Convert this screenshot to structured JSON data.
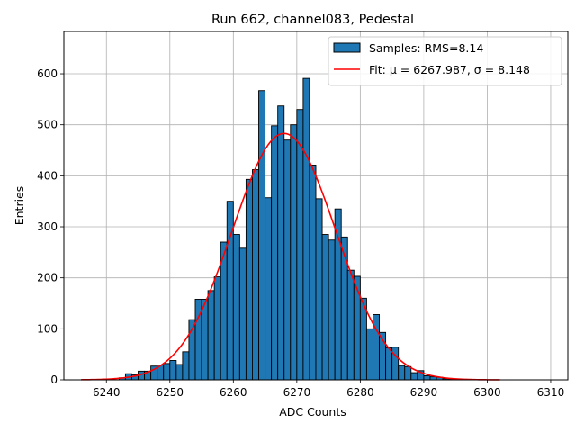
{
  "chart_data": {
    "type": "bar",
    "title": "Run 662, channel083, Pedestal",
    "xlabel": "ADC Counts",
    "ylabel": "Entries",
    "xlim": [
      6233.3,
      6312.7
    ],
    "ylim": [
      0,
      683
    ],
    "x_ticks": [
      6240,
      6250,
      6260,
      6270,
      6280,
      6290,
      6300,
      6310
    ],
    "y_ticks": [
      0,
      100,
      200,
      300,
      400,
      500,
      600
    ],
    "grid": true,
    "legend_position": "top-right",
    "bin_width": 1,
    "bar_color": "#1f77b4",
    "bar_edge_color": "#000000",
    "fit_color": "#ff0000",
    "histogram": {
      "name": "Samples: RMS=8.14",
      "bin_left_edges": [
        6242,
        6243,
        6244,
        6245,
        6246,
        6247,
        6248,
        6249,
        6250,
        6251,
        6252,
        6253,
        6254,
        6255,
        6256,
        6257,
        6258,
        6259,
        6260,
        6261,
        6262,
        6263,
        6264,
        6265,
        6266,
        6267,
        6268,
        6269,
        6270,
        6271,
        6272,
        6273,
        6274,
        6275,
        6276,
        6277,
        6278,
        6279,
        6280,
        6281,
        6282,
        6283,
        6284,
        6285,
        6286,
        6287,
        6288,
        6289,
        6290,
        6291,
        6292,
        6293,
        6294,
        6295,
        6296
      ],
      "counts": [
        4,
        12,
        10,
        17,
        17,
        27,
        29,
        32,
        38,
        30,
        55,
        118,
        158,
        158,
        175,
        202,
        270,
        350,
        285,
        258,
        393,
        412,
        567,
        357,
        498,
        537,
        470,
        500,
        530,
        591,
        421,
        355,
        285,
        274,
        335,
        280,
        215,
        203,
        160,
        100,
        128,
        93,
        63,
        64,
        28,
        26,
        14,
        18,
        8,
        6,
        5,
        2,
        2,
        1,
        1
      ]
    },
    "fit": {
      "name": "Fit: μ = 6267.987, σ = 8.148",
      "mu": 6267.987,
      "sigma": 8.148,
      "amplitude": 483,
      "x_range": [
        6236,
        6302
      ]
    }
  }
}
